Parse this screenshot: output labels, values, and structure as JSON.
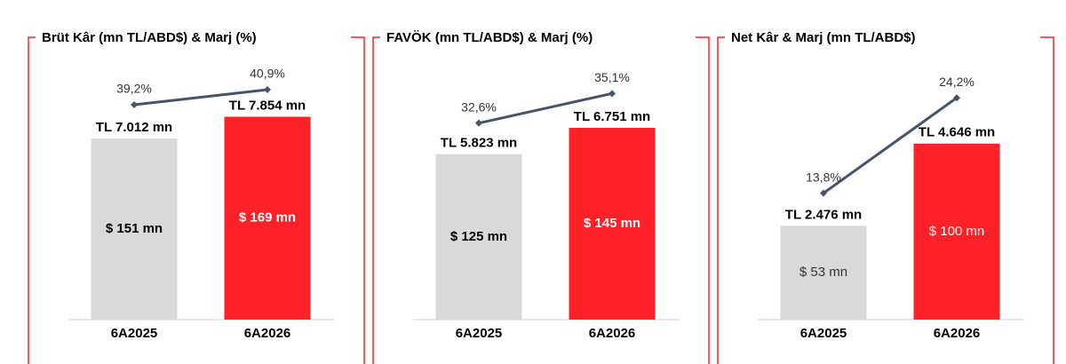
{
  "chart_data": [
    {
      "type": "bar",
      "title": "Brüt Kâr (mn TL/ABD$) & Marj (%)",
      "categories": [
        "6A2025",
        "6A2026"
      ],
      "colors": [
        "#d9d9d9",
        "#ff2128"
      ],
      "values": [
        7012,
        7854
      ],
      "value_labels": [
        "TL 7.012 mn",
        "TL 7.854 mn"
      ],
      "ylim": [
        0,
        11000
      ],
      "usd": {
        "values": [
          151,
          169
        ],
        "value_labels": [
          "$ 151 mn",
          "$ 169 mn"
        ]
      },
      "margin": {
        "type": "line",
        "color": "#44546a",
        "values": [
          39.2,
          40.9
        ],
        "value_labels": [
          "39,2%",
          "40,9%"
        ]
      },
      "y2lim": [
        15,
        47
      ]
    },
    {
      "type": "bar",
      "title": "FAVÖK (mn TL/ABD$) & Marj (%)",
      "categories": [
        "6A2025",
        "6A2026"
      ],
      "colors": [
        "#d9d9d9",
        "#ff2128"
      ],
      "values": [
        5823,
        6751
      ],
      "value_labels": [
        "TL 5.823 mn",
        "TL 6.751 mn"
      ],
      "ylim": [
        0,
        10000
      ],
      "usd": {
        "values": [
          125,
          145
        ],
        "value_labels": [
          "$ 125 mn",
          "$ 145 mn"
        ]
      },
      "margin": {
        "type": "line",
        "color": "#44546a",
        "values": [
          32.6,
          35.1
        ],
        "value_labels": [
          "32,6%",
          "35,1%"
        ]
      },
      "y2lim": [
        16,
        40
      ]
    },
    {
      "type": "bar",
      "title": "Net Kâr & Marj (mn TL/ABD$)",
      "categories": [
        "6A2025",
        "6A2026"
      ],
      "colors": [
        "#d9d9d9",
        "#ff2128"
      ],
      "values": [
        2476,
        4646
      ],
      "value_labels": [
        "TL 2.476 mn",
        "TL 4.646 mn"
      ],
      "ylim": [
        0,
        7500
      ],
      "usd": {
        "values": [
          53,
          100
        ],
        "value_labels": [
          "$ 53 mn",
          "$ 100 mn"
        ]
      },
      "margin": {
        "type": "line",
        "color": "#44546a",
        "values": [
          13.8,
          24.2
        ],
        "value_labels": [
          "13,8%",
          "24,2%"
        ]
      },
      "y2lim": [
        0,
        31
      ]
    }
  ]
}
